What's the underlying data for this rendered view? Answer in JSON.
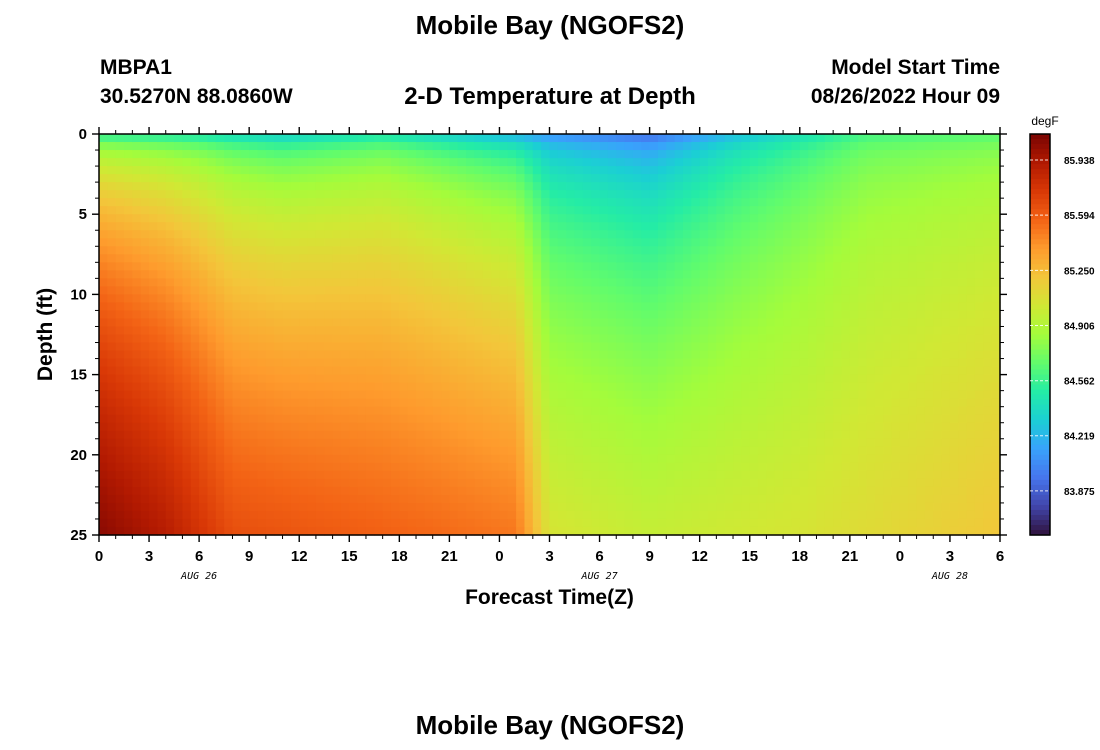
{
  "header": {
    "title": "Mobile Bay (NGOFS2)",
    "station_id": "MBPA1",
    "station_location": "30.5270N  88.0860W",
    "subtitle": "2-D Temperature at Depth",
    "model_start_label": "Model Start Time",
    "model_start_value": "08/26/2022 Hour 09"
  },
  "footer": {
    "title_repeat": "Mobile Bay (NGOFS2)"
  },
  "colors": {
    "colormap": [
      "#30123b",
      "#4145ab",
      "#4675ed",
      "#39a2fc",
      "#1bcfd4",
      "#24eca6",
      "#61fc6c",
      "#a4fc3b",
      "#d1e834",
      "#f3c63a",
      "#fe9b2d",
      "#f36315",
      "#d93806",
      "#b11901",
      "#7a0402"
    ]
  },
  "chart_data": {
    "type": "heatmap",
    "xlabel": "Forecast Time(Z)",
    "ylabel": "Depth (ft)",
    "x_tick_labels": [
      "0",
      "3",
      "6",
      "9",
      "12",
      "15",
      "18",
      "21",
      "0",
      "3",
      "6",
      "9",
      "12",
      "15",
      "18",
      "21",
      "0",
      "3",
      "6"
    ],
    "date_labels": [
      {
        "text": "AUG 26",
        "hour_index": 6
      },
      {
        "text": "AUG 27",
        "hour_index": 30
      },
      {
        "text": "AUG 28",
        "hour_index": 51
      }
    ],
    "x_range_hours": [
      0,
      54
    ],
    "y_ticks": [
      0,
      5,
      10,
      15,
      20,
      25
    ],
    "ylim": [
      0,
      25
    ],
    "colorbar": {
      "unit": "degF",
      "tick_labels": [
        "85.938",
        "85.594",
        "85.250",
        "84.906",
        "84.562",
        "84.219",
        "83.875"
      ],
      "tick_values": [
        85.938,
        85.594,
        85.25,
        84.906,
        84.562,
        84.219,
        83.875
      ],
      "range": [
        83.6,
        86.1
      ]
    },
    "surface_temp_keyframes": [
      {
        "hour": 0,
        "value": 84.25
      },
      {
        "hour": 6,
        "value": 84.22
      },
      {
        "hour": 11,
        "value": 84.1
      },
      {
        "hour": 17,
        "value": 84.25
      },
      {
        "hour": 24,
        "value": 84.0
      },
      {
        "hour": 33,
        "value": 83.75
      },
      {
        "hour": 38,
        "value": 84.1
      },
      {
        "hour": 46,
        "value": 84.5
      },
      {
        "hour": 54,
        "value": 84.55
      }
    ],
    "bottom_temp_keyframes": [
      {
        "hour": 0,
        "value": 86.05
      },
      {
        "hour": 4,
        "value": 85.9
      },
      {
        "hour": 8,
        "value": 85.65
      },
      {
        "hour": 20,
        "value": 85.55
      },
      {
        "hour": 25,
        "value": 85.5
      },
      {
        "hour": 27,
        "value": 85.05
      },
      {
        "hour": 33,
        "value": 84.98
      },
      {
        "hour": 42,
        "value": 85.05
      },
      {
        "hour": 54,
        "value": 85.2
      }
    ]
  }
}
